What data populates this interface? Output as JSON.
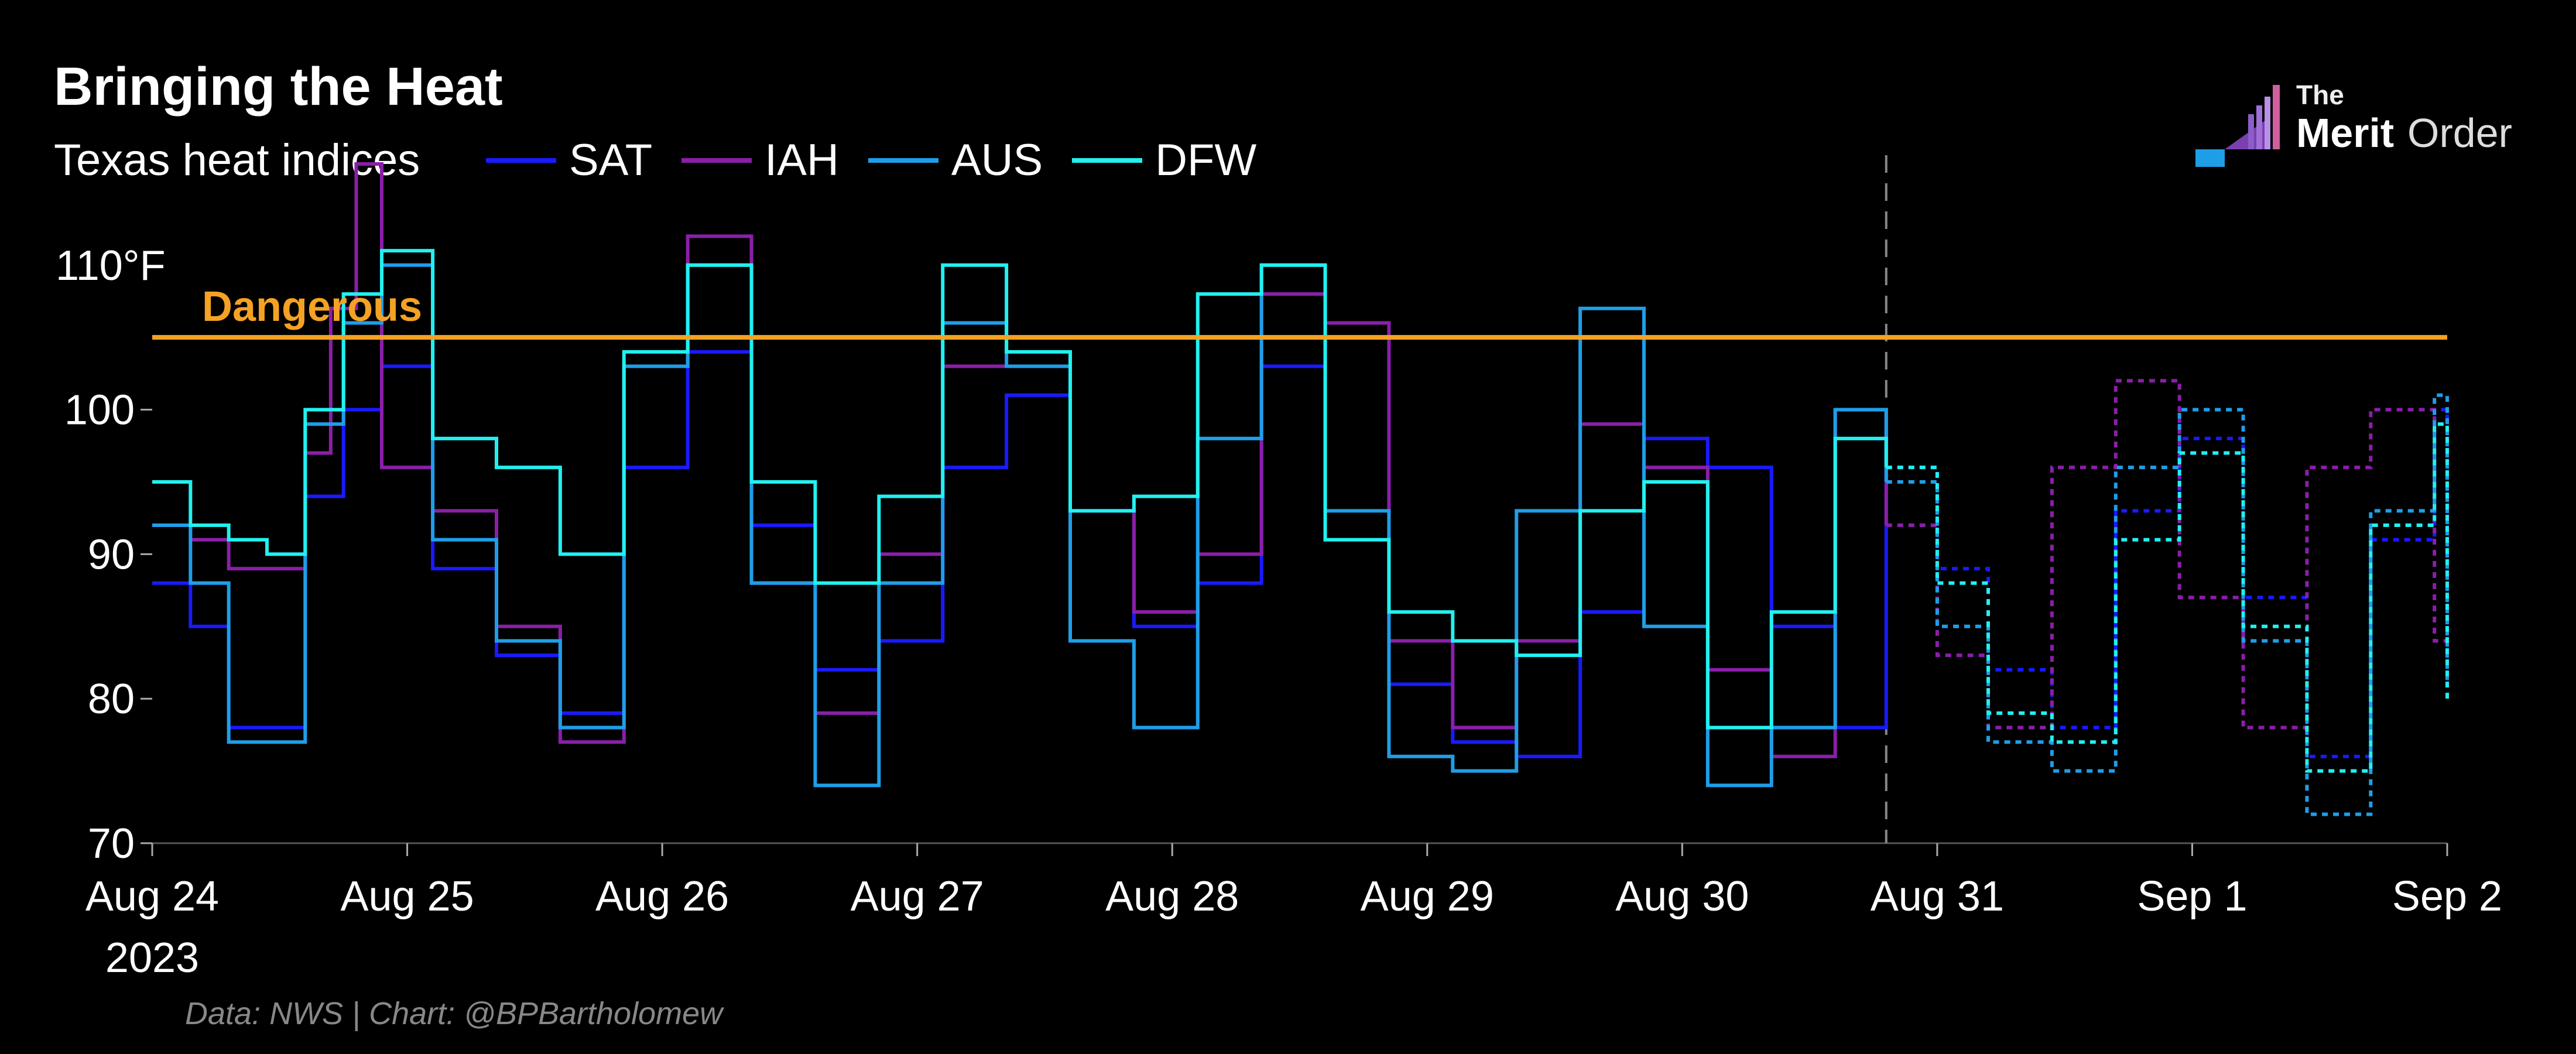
{
  "title": "Bringing the Heat",
  "subtitle": "Texas heat indices",
  "source": "Data: NWS | Chart: @BPBartholomew",
  "logo": {
    "the": "The",
    "merit": "Merit",
    "order": "Order"
  },
  "colors": {
    "background": "#000000",
    "SAT": "#1a1aff",
    "IAH": "#8a1fa8",
    "AUS": "#1f9ee8",
    "DFW": "#22f0f0",
    "threshold": "#f4a223",
    "divider": "#888888"
  },
  "chart_data": {
    "type": "line",
    "title": "Bringing the Heat",
    "subtitle": "Texas heat indices",
    "ylim": [
      70,
      117
    ],
    "xlim": [
      0,
      9
    ],
    "y_ticks": [
      70,
      80,
      90,
      100
    ],
    "y_tick_labels": [
      "70",
      "80",
      "90",
      "100"
    ],
    "y_extra_label": "110°F",
    "x_ticks": [
      0,
      1,
      2,
      3,
      4,
      5,
      6,
      7,
      8,
      9
    ],
    "x_tick_labels": [
      "Aug 24",
      "Aug 25",
      "Aug 26",
      "Aug 27",
      "Aug 28",
      "Aug 29",
      "Aug 30",
      "Aug 31",
      "Sep 1",
      "Sep 2"
    ],
    "x_tick_sublabel": "2023",
    "threshold": {
      "value": 105,
      "label": "Dangerous"
    },
    "forecast_start": 6.8,
    "grid": false,
    "legend_position": "top-left",
    "series": [
      {
        "name": "SAT",
        "x": [
          0,
          0.15,
          0.3,
          0.45,
          0.6,
          0.75,
          0.9,
          1.1,
          1.35,
          1.6,
          1.85,
          2.1,
          2.35,
          2.6,
          2.85,
          3.1,
          3.35,
          3.6,
          3.85,
          4.1,
          4.35,
          4.6,
          4.85,
          5.1,
          5.35,
          5.6,
          5.85,
          6.1,
          6.35,
          6.6,
          6.8,
          7.0,
          7.2,
          7.45,
          7.7,
          7.95,
          8.2,
          8.45,
          8.7,
          8.95,
          9.0
        ],
        "y": [
          88,
          85,
          78,
          78,
          94,
          100,
          103,
          89,
          83,
          79,
          96,
          104,
          92,
          82,
          84,
          96,
          101,
          93,
          85,
          88,
          103,
          105,
          81,
          77,
          76,
          86,
          98,
          96,
          85,
          78,
          96,
          89,
          82,
          78,
          93,
          98,
          87,
          76,
          91,
          100,
          85
        ]
      },
      {
        "name": "IAH",
        "x": [
          0,
          0.15,
          0.3,
          0.45,
          0.6,
          0.7,
          0.8,
          0.9,
          1.1,
          1.35,
          1.6,
          1.85,
          2.1,
          2.35,
          2.6,
          2.85,
          3.1,
          3.35,
          3.6,
          3.85,
          4.1,
          4.35,
          4.6,
          4.85,
          5.1,
          5.35,
          5.6,
          5.85,
          6.1,
          6.35,
          6.6,
          6.8,
          7.0,
          7.2,
          7.45,
          7.7,
          7.95,
          8.2,
          8.45,
          8.7,
          8.95,
          9.0
        ],
        "y": [
          92,
          91,
          89,
          89,
          97,
          107,
          117,
          96,
          93,
          85,
          77,
          103,
          112,
          88,
          79,
          90,
          103,
          103,
          93,
          86,
          90,
          108,
          106,
          84,
          78,
          84,
          99,
          96,
          82,
          76,
          100,
          92,
          83,
          78,
          96,
          102,
          87,
          78,
          96,
          100,
          84,
          85
        ]
      },
      {
        "name": "AUS",
        "x": [
          0,
          0.15,
          0.3,
          0.45,
          0.6,
          0.75,
          0.9,
          1.1,
          1.35,
          1.6,
          1.85,
          2.1,
          2.35,
          2.6,
          2.85,
          3.1,
          3.35,
          3.6,
          3.85,
          4.1,
          4.35,
          4.6,
          4.85,
          5.1,
          5.35,
          5.6,
          5.85,
          6.1,
          6.35,
          6.6,
          6.8,
          7.0,
          7.2,
          7.45,
          7.7,
          7.95,
          8.2,
          8.45,
          8.7,
          8.95,
          9.0
        ],
        "y": [
          92,
          88,
          77,
          77,
          99,
          106,
          110,
          91,
          84,
          78,
          103,
          110,
          88,
          74,
          88,
          106,
          103,
          84,
          78,
          98,
          110,
          93,
          76,
          75,
          93,
          107,
          85,
          74,
          78,
          100,
          95,
          85,
          77,
          75,
          96,
          100,
          84,
          72,
          93,
          101,
          81
        ]
      },
      {
        "name": "DFW",
        "x": [
          0,
          0.15,
          0.3,
          0.45,
          0.6,
          0.75,
          0.9,
          1.1,
          1.35,
          1.6,
          1.85,
          2.1,
          2.35,
          2.6,
          2.85,
          3.1,
          3.35,
          3.6,
          3.85,
          4.1,
          4.35,
          4.6,
          4.85,
          5.1,
          5.35,
          5.6,
          5.85,
          6.1,
          6.35,
          6.6,
          6.8,
          7.0,
          7.2,
          7.45,
          7.7,
          7.95,
          8.2,
          8.45,
          8.7,
          8.95,
          9.0
        ],
        "y": [
          95,
          92,
          91,
          90,
          100,
          108,
          111,
          98,
          96,
          90,
          104,
          110,
          95,
          88,
          94,
          110,
          104,
          93,
          94,
          108,
          110,
          91,
          86,
          84,
          83,
          93,
          95,
          78,
          86,
          98,
          96,
          88,
          79,
          77,
          91,
          97,
          85,
          75,
          92,
          99,
          80
        ]
      }
    ]
  }
}
